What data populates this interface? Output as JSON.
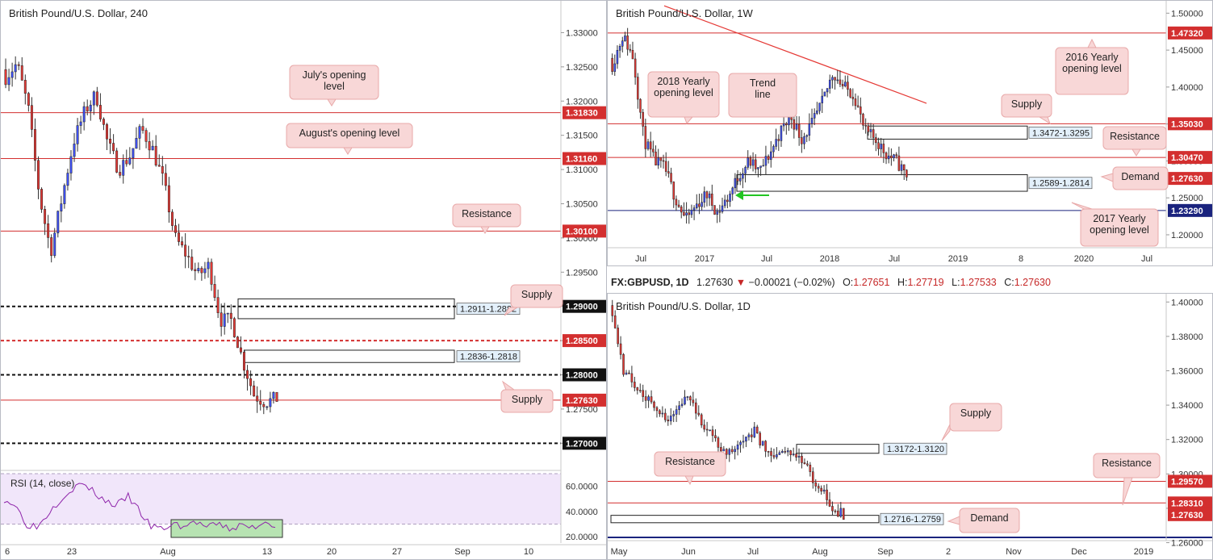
{
  "chart_data": [
    {
      "type": "candlestick",
      "title": "British Pound/U.S. Dollar, 240",
      "ylim": [
        1.2665,
        1.333
      ],
      "yticks": [
        "1.33000",
        "1.32500",
        "1.32000",
        "1.31500",
        "1.31000",
        "1.30500",
        "1.30000",
        "1.29500",
        "1.29000",
        "1.28500",
        "1.28000",
        "1.27500",
        "1.27000"
      ],
      "xticks": [
        "6",
        "23",
        "Aug",
        "13",
        "20",
        "27",
        "Sep",
        "10"
      ],
      "price_labels": [
        {
          "value": 1.3183,
          "text": "1.31830",
          "color": "#d32f2f"
        },
        {
          "value": 1.3116,
          "text": "1.31160",
          "color": "#d32f2f"
        },
        {
          "value": 1.301,
          "text": "1.30100",
          "color": "#d32f2f"
        },
        {
          "value": 1.29,
          "text": "1.29000",
          "color": "#111111"
        },
        {
          "value": 1.285,
          "text": "1.28500",
          "color": "#d32f2f"
        },
        {
          "value": 1.28,
          "text": "1.28000",
          "color": "#111111"
        },
        {
          "value": 1.2763,
          "text": "1.27630",
          "color": "#d32f2f"
        },
        {
          "value": 1.27,
          "text": "1.27000",
          "color": "#111111"
        }
      ],
      "zones": [
        {
          "range": "1.2911-1.2882",
          "top": 1.2911,
          "bottom": 1.2882
        },
        {
          "range": "1.2836-1.2818",
          "top": 1.2836,
          "bottom": 1.2818
        }
      ],
      "annotations": [
        "July's opening level",
        "August's opening level",
        "Resistance",
        "Supply",
        "Supply"
      ],
      "rsi": {
        "label": "RSI (14, close)",
        "ticks": [
          "60.0000",
          "40.0000",
          "20.0000"
        ],
        "ylim": [
          15,
          70
        ]
      }
    },
    {
      "type": "candlestick",
      "title": "British Pound/U.S. Dollar, 1W",
      "ylim": [
        1.165,
        1.508
      ],
      "yticks": [
        "1.50000",
        "1.45000",
        "1.40000",
        "1.35000",
        "1.30000",
        "1.25000",
        "1.20000"
      ],
      "xticks": [
        "Jul",
        "2017",
        "Jul",
        "2018",
        "Jul",
        "2019",
        "8",
        "2020",
        "Jul"
      ],
      "price_labels": [
        {
          "value": 1.4732,
          "text": "1.47320",
          "color": "#d32f2f"
        },
        {
          "value": 1.3503,
          "text": "1.35030",
          "color": "#d32f2f"
        },
        {
          "value": 1.3047,
          "text": "1.30470",
          "color": "#d32f2f"
        },
        {
          "value": 1.2763,
          "text": "1.27630",
          "color": "#d32f2f"
        },
        {
          "value": 1.2329,
          "text": "1.23290",
          "color": "#1a237e"
        }
      ],
      "zones": [
        {
          "range": "1.3472-1.3295",
          "top": 1.3472,
          "bottom": 1.3295
        },
        {
          "range": "1.2589-1.2814",
          "top": 1.2814,
          "bottom": 1.2589
        }
      ],
      "annotations": [
        "Trend line resistance",
        "2018 Yearly opening level",
        "2016 Yearly opening level",
        "Supply",
        "Resistance",
        "Demand",
        "2017 Yearly opening level"
      ]
    },
    {
      "type": "candlestick",
      "title": "British Pound/U.S. Dollar, 1D",
      "ylim": [
        1.264,
        1.402
      ],
      "yticks": [
        "1.40000",
        "1.38000",
        "1.36000",
        "1.34000",
        "1.32000",
        "1.30000",
        "1.28000",
        "1.26000"
      ],
      "xticks": [
        "May",
        "Jun",
        "Jul",
        "Aug",
        "Sep",
        "2",
        "Nov",
        "Dec",
        "2019"
      ],
      "price_labels": [
        {
          "value": 1.2957,
          "text": "1.29570",
          "color": "#d32f2f"
        },
        {
          "value": 1.2831,
          "text": "1.28310",
          "color": "#d32f2f"
        },
        {
          "value": 1.2763,
          "text": "1.27630",
          "color": "#d32f2f"
        }
      ],
      "zones": [
        {
          "range": "1.3172-1.3120",
          "top": 1.3172,
          "bottom": 1.312
        },
        {
          "range": "1.2716-1.2759",
          "top": 1.2759,
          "bottom": 1.2716
        }
      ],
      "annotations": [
        "Supply",
        "Resistance",
        "Resistance",
        "Demand"
      ]
    }
  ],
  "header": {
    "symbol": "FX:GBPUSD, 1D",
    "last": "1.27630",
    "change": "−0.00021 (−0.02%)",
    "open_label": "O:",
    "open": "1.27651",
    "high_label": "H:",
    "high": "1.27719",
    "low_label": "L:",
    "low": "1.27533",
    "close_label": "C:",
    "close": "1.27630"
  },
  "colors": {
    "bull": "#3f51f5",
    "bear": "#e53935",
    "level": "#d32f2f",
    "rsi_fill": "#f1e6fa",
    "rsi_line": "#8e24aa",
    "green_box": "#66bb6a"
  }
}
